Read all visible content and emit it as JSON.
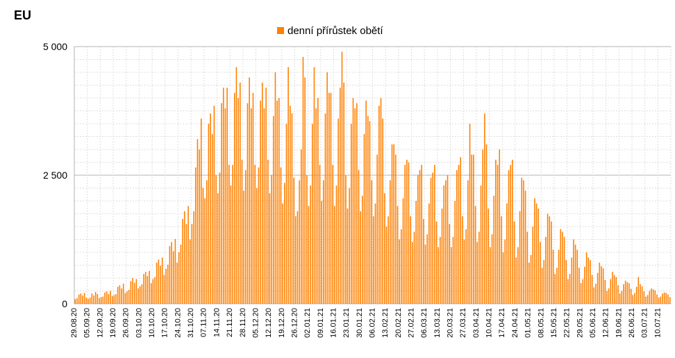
{
  "chart_data": {
    "type": "bar",
    "title": "EU",
    "legend_position": "top-center",
    "series": [
      {
        "name": "denní přírůstek obětí",
        "color": "#ff8000"
      }
    ],
    "start_date": "29.08.20",
    "end_date": "16.07.21",
    "ylim": [
      0,
      5000
    ],
    "yticks": [
      {
        "value": 0,
        "label": "0"
      },
      {
        "value": 2500,
        "label": "2 500"
      },
      {
        "value": 5000,
        "label": "5 000"
      }
    ],
    "grid": {
      "major_y": true,
      "minor_y": true,
      "x": true
    },
    "xtick_labels": [
      "29.08.20",
      "05.09.20",
      "12.09.20",
      "19.09.20",
      "26.09.20",
      "03.10.20",
      "10.10.20",
      "17.10.20",
      "24.10.20",
      "31.10.20",
      "07.11.20",
      "14.11.20",
      "21.11.20",
      "28.11.20",
      "05.12.20",
      "12.12.20",
      "19.12.20",
      "26.12.20",
      "02.01.21",
      "09.01.21",
      "16.01.21",
      "23.01.21",
      "30.01.21",
      "06.02.21",
      "13.02.21",
      "20.02.21",
      "27.02.21",
      "06.03.21",
      "13.03.21",
      "20.03.21",
      "27.03.21",
      "03.04.21",
      "10.04.21",
      "17.04.21",
      "24.04.21",
      "01.05.21",
      "08.05.21",
      "15.05.21",
      "22.05.21",
      "29.05.21",
      "05.06.21",
      "12.06.21",
      "19.06.21",
      "26.06.21",
      "03.07.21",
      "10.07.21"
    ],
    "weekly_values": [
      [
        90,
        110,
        180,
        200,
        160,
        210,
        120
      ],
      [
        100,
        120,
        200,
        160,
        230,
        190,
        110
      ],
      [
        130,
        140,
        220,
        240,
        190,
        250,
        150
      ],
      [
        170,
        190,
        330,
        360,
        300,
        390,
        210
      ],
      [
        240,
        270,
        440,
        500,
        410,
        480,
        300
      ],
      [
        340,
        380,
        580,
        620,
        540,
        640,
        400
      ],
      [
        480,
        520,
        800,
        860,
        740,
        900,
        560
      ],
      [
        680,
        760,
        1120,
        1200,
        1020,
        1260,
        800
      ],
      [
        1000,
        1150,
        1650,
        1800,
        1550,
        1900,
        1250
      ],
      [
        1550,
        1800,
        2650,
        3200,
        3000,
        3600,
        2250
      ],
      [
        2050,
        2400,
        3500,
        3700,
        3300,
        3850,
        2500
      ],
      [
        2150,
        2550,
        3900,
        4200,
        3800,
        4200,
        2700
      ],
      [
        2300,
        2700,
        4100,
        4600,
        4000,
        4300,
        2800
      ],
      [
        2200,
        2600,
        3900,
        4400,
        3800,
        4100,
        2700
      ],
      [
        2250,
        2650,
        3950,
        4300,
        3800,
        4200,
        2800
      ],
      [
        2150,
        2500,
        3650,
        4500,
        3950,
        4000,
        2650
      ],
      [
        1950,
        2350,
        3500,
        4600,
        3850,
        3700,
        2450
      ],
      [
        1700,
        1800,
        2400,
        3000,
        4800,
        4400,
        2500
      ],
      [
        1900,
        2300,
        3500,
        4600,
        3800,
        4000,
        2700
      ],
      [
        2000,
        2400,
        3700,
        4500,
        4100,
        4100,
        2700
      ],
      [
        1900,
        2300,
        3600,
        4200,
        4900,
        4300,
        2500
      ],
      [
        1850,
        2250,
        3500,
        4000,
        3800,
        3900,
        2600
      ],
      [
        1800,
        2100,
        3300,
        3950,
        3650,
        3550,
        2400
      ],
      [
        1700,
        1950,
        2900,
        3850,
        4000,
        3600,
        2150
      ],
      [
        1500,
        1700,
        2400,
        3100,
        3100,
        2900,
        1900
      ],
      [
        1250,
        1450,
        2050,
        2700,
        2800,
        2750,
        1700
      ],
      [
        1200,
        1400,
        2000,
        2500,
        2600,
        2700,
        1650
      ],
      [
        1150,
        1350,
        1950,
        2450,
        2550,
        2700,
        1600
      ],
      [
        1100,
        1300,
        1850,
        2300,
        2400,
        2500,
        1550
      ],
      [
        1100,
        1300,
        2000,
        2600,
        2700,
        2850,
        1700
      ],
      [
        1250,
        1450,
        2400,
        3500,
        2900,
        2900,
        1900
      ],
      [
        1200,
        1400,
        2300,
        3000,
        3700,
        3100,
        1850
      ],
      [
        1100,
        1350,
        2100,
        2800,
        2700,
        3000,
        1700
      ],
      [
        1000,
        1250,
        1950,
        2600,
        2700,
        2800,
        1600
      ],
      [
        900,
        1100,
        1800,
        2450,
        2400,
        2200,
        1400
      ],
      [
        800,
        950,
        1500,
        2050,
        1950,
        1850,
        1200
      ],
      [
        700,
        850,
        1300,
        1750,
        1700,
        1600,
        1050
      ],
      [
        580,
        700,
        1050,
        1450,
        1400,
        1300,
        850
      ],
      [
        480,
        580,
        900,
        1250,
        1150,
        1050,
        700
      ],
      [
        400,
        480,
        720,
        1000,
        900,
        850,
        560
      ],
      [
        320,
        390,
        600,
        800,
        730,
        690,
        460
      ],
      [
        250,
        300,
        480,
        620,
        560,
        520,
        360
      ],
      [
        200,
        250,
        380,
        450,
        420,
        400,
        290
      ],
      [
        170,
        210,
        330,
        520,
        380,
        340,
        240
      ],
      [
        140,
        170,
        250,
        300,
        280,
        260,
        180
      ],
      [
        120,
        140,
        200,
        220,
        210,
        180,
        130
      ]
    ]
  }
}
